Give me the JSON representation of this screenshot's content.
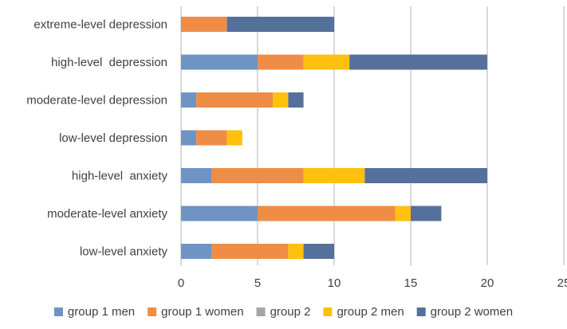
{
  "chart_data": {
    "type": "bar",
    "orientation": "horizontal",
    "stacked": true,
    "categories": [
      "extreme-level depression",
      "high-level  depression",
      "moderate-level depression",
      "low-level depression",
      "high-level  anxiety",
      "moderate-level anxiety",
      "low-level anxiety"
    ],
    "series": [
      {
        "name": "group 1 men",
        "color": "#6f94c4",
        "values": [
          0,
          5,
          1,
          1,
          2,
          5,
          2
        ]
      },
      {
        "name": "group 1 women",
        "color": "#ef8d47",
        "values": [
          3,
          3,
          5,
          2,
          6,
          9,
          5
        ]
      },
      {
        "name": "group 2",
        "color": "#a5a5a5",
        "values": [
          0,
          0,
          0,
          0,
          0,
          0,
          0
        ]
      },
      {
        "name": "group 2 men",
        "color": "#ffc00e",
        "values": [
          0,
          3,
          1,
          1,
          4,
          1,
          1
        ]
      },
      {
        "name": "group 2 women",
        "color": "#56709c",
        "values": [
          7,
          9,
          1,
          0,
          8,
          2,
          2
        ]
      }
    ],
    "xlim": [
      0,
      25
    ],
    "xticks": [
      "0",
      "5",
      "10",
      "15",
      "20",
      "25"
    ],
    "grid": true,
    "legend_position": "bottom",
    "title": "",
    "xlabel": "",
    "ylabel": ""
  }
}
